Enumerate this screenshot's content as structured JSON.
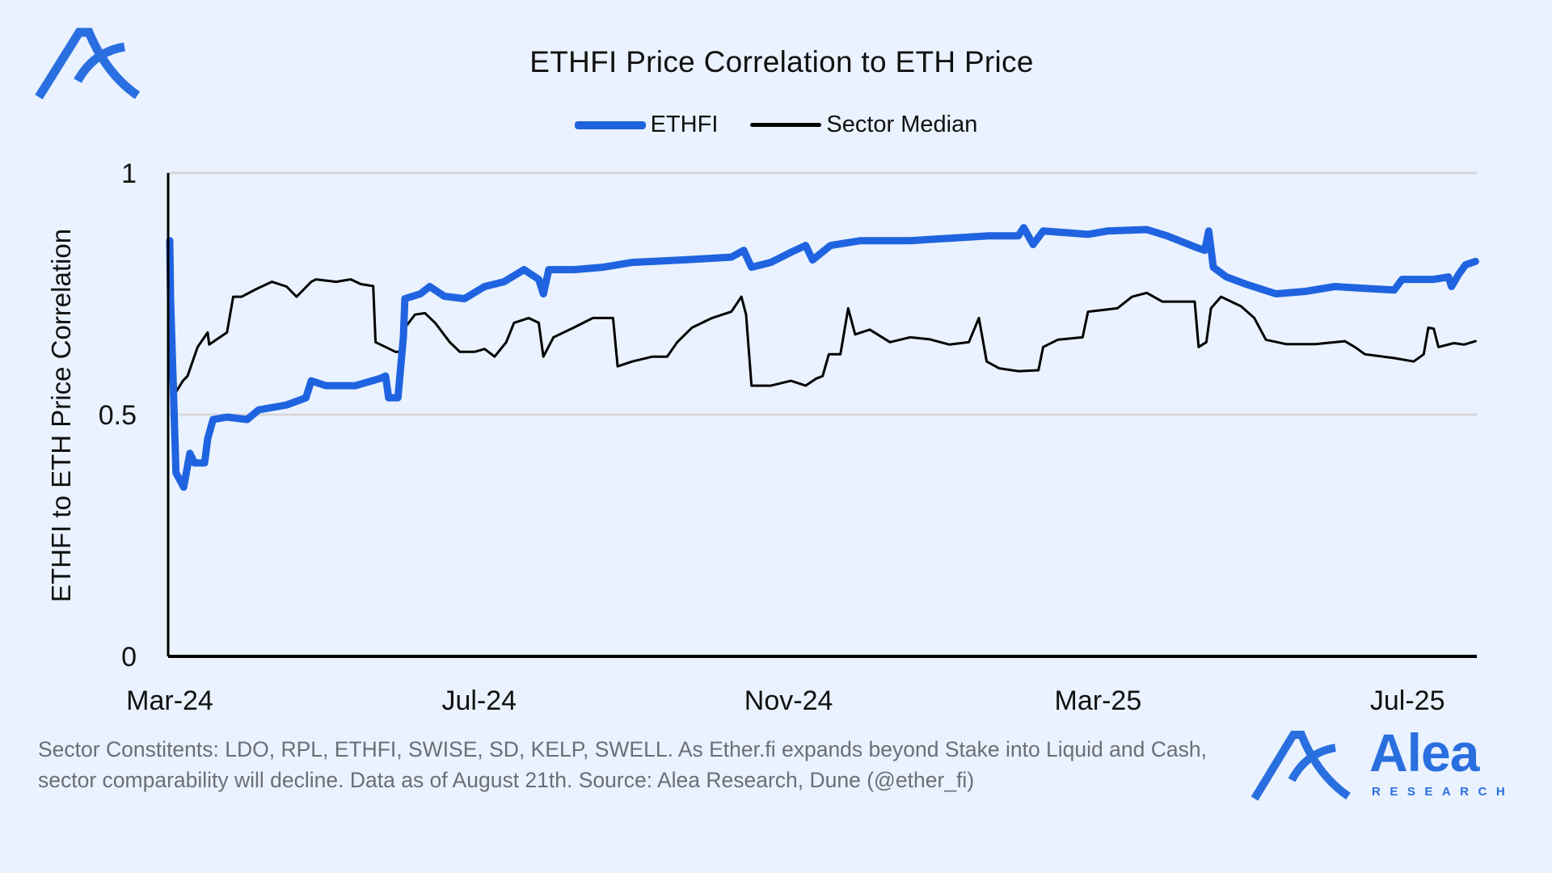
{
  "chart_data": {
    "type": "line",
    "title": "ETHFI Price Correlation to ETH Price",
    "xlabel": "",
    "ylabel": "ETHFI to ETH Price Correlation",
    "x_unit": "months since Mar-24",
    "xlim": [
      0,
      16.9
    ],
    "ylim": [
      0,
      1
    ],
    "yticks": [
      {
        "v": 0,
        "label": "0"
      },
      {
        "v": 0.5,
        "label": "0.5"
      },
      {
        "v": 1,
        "label": "1"
      }
    ],
    "xticks": [
      {
        "v": 0,
        "label": "Mar-24"
      },
      {
        "v": 4,
        "label": "Jul-24"
      },
      {
        "v": 8,
        "label": "Nov-24"
      },
      {
        "v": 12,
        "label": "Mar-25"
      },
      {
        "v": 16,
        "label": "Jul-25"
      }
    ],
    "grid": true,
    "legend_position": "top-center",
    "series": [
      {
        "name": "ETHFI",
        "color": "#1f63e0",
        "points": [
          [
            0,
            0.86
          ],
          [
            0.01,
            0.74
          ],
          [
            0.08,
            0.38
          ],
          [
            0.18,
            0.35
          ],
          [
            0.26,
            0.42
          ],
          [
            0.32,
            0.4
          ],
          [
            0.45,
            0.4
          ],
          [
            0.49,
            0.45
          ],
          [
            0.56,
            0.49
          ],
          [
            0.74,
            0.495
          ],
          [
            1.0,
            0.49
          ],
          [
            1.15,
            0.51
          ],
          [
            1.51,
            0.52
          ],
          [
            1.76,
            0.535
          ],
          [
            1.83,
            0.57
          ],
          [
            2.02,
            0.56
          ],
          [
            2.4,
            0.56
          ],
          [
            2.72,
            0.575
          ],
          [
            2.79,
            0.58
          ],
          [
            2.83,
            0.535
          ],
          [
            2.95,
            0.535
          ],
          [
            3.02,
            0.66
          ],
          [
            3.04,
            0.74
          ],
          [
            3.24,
            0.75
          ],
          [
            3.36,
            0.765
          ],
          [
            3.55,
            0.745
          ],
          [
            3.81,
            0.74
          ],
          [
            4.07,
            0.765
          ],
          [
            4.32,
            0.775
          ],
          [
            4.58,
            0.8
          ],
          [
            4.77,
            0.78
          ],
          [
            4.83,
            0.75
          ],
          [
            4.9,
            0.8
          ],
          [
            5.22,
            0.8
          ],
          [
            5.6,
            0.805
          ],
          [
            5.98,
            0.815
          ],
          [
            6.62,
            0.82
          ],
          [
            7.26,
            0.826
          ],
          [
            7.42,
            0.84
          ],
          [
            7.52,
            0.805
          ],
          [
            7.77,
            0.815
          ],
          [
            8.03,
            0.836
          ],
          [
            8.22,
            0.85
          ],
          [
            8.31,
            0.82
          ],
          [
            8.54,
            0.85
          ],
          [
            8.93,
            0.86
          ],
          [
            9.57,
            0.86
          ],
          [
            10.08,
            0.865
          ],
          [
            10.59,
            0.87
          ],
          [
            10.97,
            0.87
          ],
          [
            11.04,
            0.887
          ],
          [
            11.16,
            0.852
          ],
          [
            11.29,
            0.88
          ],
          [
            11.87,
            0.873
          ],
          [
            12.12,
            0.88
          ],
          [
            12.63,
            0.883
          ],
          [
            12.89,
            0.87
          ],
          [
            13.27,
            0.846
          ],
          [
            13.38,
            0.84
          ],
          [
            13.43,
            0.88
          ],
          [
            13.49,
            0.805
          ],
          [
            13.66,
            0.785
          ],
          [
            13.91,
            0.77
          ],
          [
            14.3,
            0.75
          ],
          [
            14.68,
            0.755
          ],
          [
            15.06,
            0.765
          ],
          [
            15.58,
            0.76
          ],
          [
            15.83,
            0.758
          ],
          [
            15.93,
            0.78
          ],
          [
            16.34,
            0.78
          ],
          [
            16.53,
            0.785
          ],
          [
            16.57,
            0.765
          ],
          [
            16.66,
            0.79
          ],
          [
            16.75,
            0.81
          ],
          [
            16.88,
            0.817
          ]
        ]
      },
      {
        "name": "Sector Median",
        "color": "#000000",
        "points": [
          [
            0,
            0.67
          ],
          [
            0.04,
            0.67
          ],
          [
            0.08,
            0.547
          ],
          [
            0.17,
            0.57
          ],
          [
            0.23,
            0.58
          ],
          [
            0.36,
            0.64
          ],
          [
            0.49,
            0.67
          ],
          [
            0.51,
            0.645
          ],
          [
            0.74,
            0.67
          ],
          [
            0.82,
            0.744
          ],
          [
            0.93,
            0.744
          ],
          [
            1.12,
            0.76
          ],
          [
            1.32,
            0.775
          ],
          [
            1.51,
            0.765
          ],
          [
            1.64,
            0.744
          ],
          [
            1.83,
            0.775
          ],
          [
            1.89,
            0.78
          ],
          [
            2.15,
            0.775
          ],
          [
            2.34,
            0.78
          ],
          [
            2.47,
            0.77
          ],
          [
            2.63,
            0.766
          ],
          [
            2.66,
            0.65
          ],
          [
            2.79,
            0.64
          ],
          [
            2.92,
            0.63
          ],
          [
            2.98,
            0.63
          ],
          [
            3.04,
            0.68
          ],
          [
            3.17,
            0.707
          ],
          [
            3.3,
            0.71
          ],
          [
            3.43,
            0.69
          ],
          [
            3.62,
            0.65
          ],
          [
            3.75,
            0.63
          ],
          [
            3.94,
            0.63
          ],
          [
            4.07,
            0.636
          ],
          [
            4.2,
            0.62
          ],
          [
            4.35,
            0.65
          ],
          [
            4.45,
            0.69
          ],
          [
            4.64,
            0.7
          ],
          [
            4.77,
            0.69
          ],
          [
            4.83,
            0.62
          ],
          [
            4.96,
            0.66
          ],
          [
            5.22,
            0.68
          ],
          [
            5.47,
            0.7
          ],
          [
            5.73,
            0.7
          ],
          [
            5.79,
            0.6
          ],
          [
            5.98,
            0.61
          ],
          [
            6.24,
            0.62
          ],
          [
            6.43,
            0.62
          ],
          [
            6.56,
            0.65
          ],
          [
            6.75,
            0.68
          ],
          [
            7.01,
            0.7
          ],
          [
            7.26,
            0.713
          ],
          [
            7.39,
            0.744
          ],
          [
            7.45,
            0.707
          ],
          [
            7.52,
            0.56
          ],
          [
            7.77,
            0.56
          ],
          [
            8.03,
            0.57
          ],
          [
            8.22,
            0.56
          ],
          [
            8.35,
            0.574
          ],
          [
            8.44,
            0.58
          ],
          [
            8.52,
            0.625
          ],
          [
            8.67,
            0.625
          ],
          [
            8.77,
            0.72
          ],
          [
            8.86,
            0.666
          ],
          [
            9.05,
            0.676
          ],
          [
            9.31,
            0.65
          ],
          [
            9.57,
            0.66
          ],
          [
            9.82,
            0.656
          ],
          [
            10.08,
            0.645
          ],
          [
            10.33,
            0.65
          ],
          [
            10.46,
            0.7
          ],
          [
            10.56,
            0.61
          ],
          [
            10.72,
            0.596
          ],
          [
            10.97,
            0.59
          ],
          [
            11.23,
            0.592
          ],
          [
            11.29,
            0.64
          ],
          [
            11.48,
            0.655
          ],
          [
            11.8,
            0.66
          ],
          [
            11.87,
            0.713
          ],
          [
            12.25,
            0.72
          ],
          [
            12.44,
            0.744
          ],
          [
            12.63,
            0.752
          ],
          [
            12.83,
            0.734
          ],
          [
            13.25,
            0.734
          ],
          [
            13.3,
            0.64
          ],
          [
            13.4,
            0.65
          ],
          [
            13.46,
            0.72
          ],
          [
            13.59,
            0.744
          ],
          [
            13.85,
            0.724
          ],
          [
            14.02,
            0.7
          ],
          [
            14.17,
            0.655
          ],
          [
            14.43,
            0.646
          ],
          [
            14.81,
            0.646
          ],
          [
            15.19,
            0.652
          ],
          [
            15.32,
            0.64
          ],
          [
            15.45,
            0.625
          ],
          [
            15.83,
            0.617
          ],
          [
            16.08,
            0.61
          ],
          [
            16.21,
            0.625
          ],
          [
            16.27,
            0.68
          ],
          [
            16.34,
            0.678
          ],
          [
            16.4,
            0.64
          ],
          [
            16.6,
            0.648
          ],
          [
            16.73,
            0.645
          ],
          [
            16.88,
            0.652
          ]
        ]
      }
    ]
  },
  "footnote": "Sector Constitents: LDO, RPL, ETHFI, SWISE, SD, KELP, SWELL. As Ether.fi expands beyond Stake into Liquid and Cash, sector comparability will decline. Data as of August 21th. Source: Alea Research, Dune (@ether_fi)",
  "brand": {
    "name": "Alea",
    "sub": "RESEARCH",
    "color": "#2a6fe0"
  }
}
